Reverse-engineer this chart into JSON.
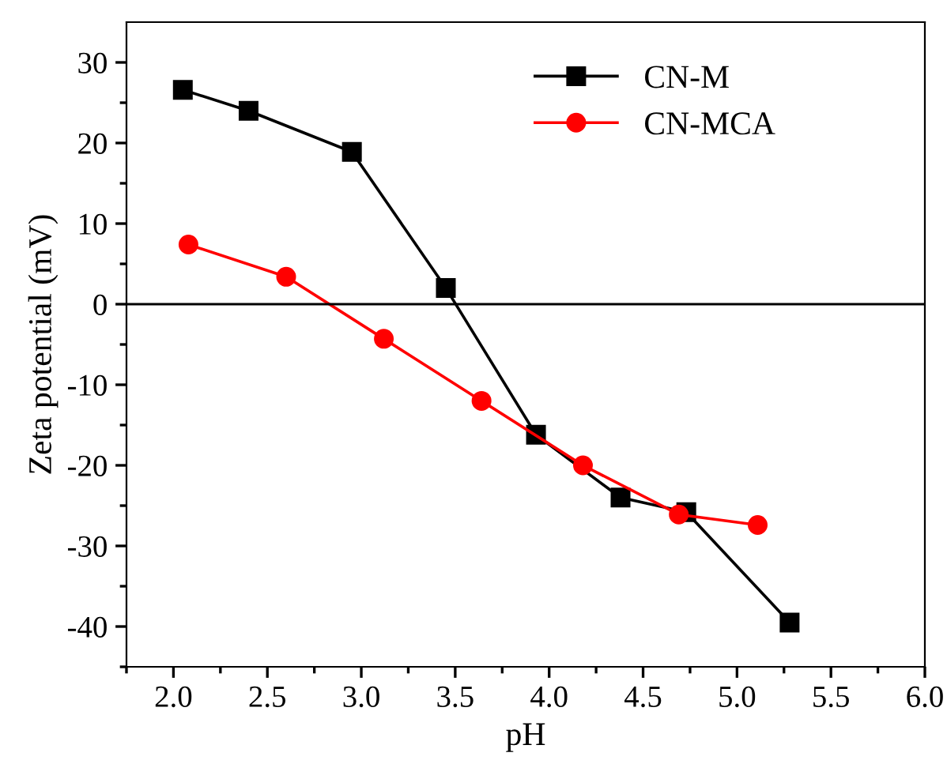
{
  "chart_data": {
    "type": "line",
    "xlabel": "pH",
    "ylabel": "Zeta potential (mV)",
    "xlim": [
      1.75,
      6.0
    ],
    "xticks": [
      {
        "value": 2.0,
        "label": "2.0"
      },
      {
        "value": 2.5,
        "label": "2.5"
      },
      {
        "value": 3.0,
        "label": "3.0"
      },
      {
        "value": 3.5,
        "label": "3.5"
      },
      {
        "value": 4.0,
        "label": "4.0"
      },
      {
        "value": 4.5,
        "label": "4.5"
      },
      {
        "value": 5.0,
        "label": "5.0"
      },
      {
        "value": 5.5,
        "label": "5.5"
      },
      {
        "value": 6.0,
        "label": "6.0"
      }
    ],
    "ylim": [
      -45,
      35
    ],
    "yticks": [
      {
        "value": -40,
        "label": "-40"
      },
      {
        "value": -30,
        "label": "-30"
      },
      {
        "value": -20,
        "label": "-20"
      },
      {
        "value": -10,
        "label": "-10"
      },
      0,
      10,
      20,
      30
    ],
    "series": [
      {
        "name": "CN-M",
        "color": "#000000",
        "marker": "square",
        "x": [
          2.05,
          2.4,
          2.95,
          3.45,
          3.93,
          4.38,
          4.73,
          5.28
        ],
        "values": [
          26.6,
          24.0,
          18.9,
          2.0,
          -16.2,
          -24.0,
          -25.8,
          -39.5
        ]
      },
      {
        "name": "CN-MCA",
        "color": "#ff0000",
        "marker": "circle",
        "x": [
          2.08,
          2.6,
          3.12,
          3.64,
          4.18,
          4.69,
          5.11
        ],
        "values": [
          7.4,
          3.4,
          -4.3,
          -12.0,
          -20.0,
          -26.1,
          -27.4
        ]
      }
    ],
    "ref_lines": [
      {
        "axis": "y",
        "value": 0,
        "color": "#000000"
      }
    ],
    "legend": "top right",
    "grid": false
  }
}
